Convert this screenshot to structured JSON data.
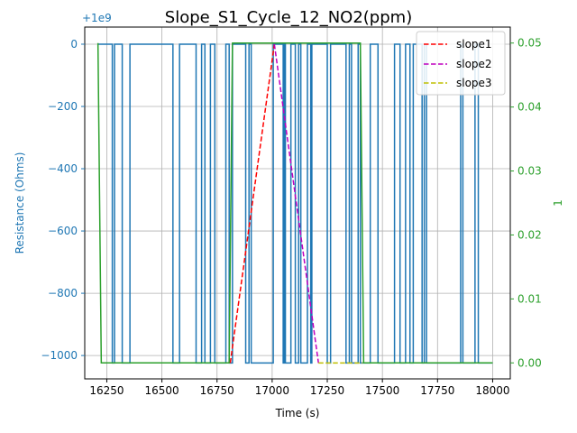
{
  "chart_data": {
    "type": "line",
    "title": "Slope_S1_Cycle_12_NO2(ppm)",
    "xlabel": "Time (s)",
    "ylabel_left": "Resistance (Ohms)",
    "ylabel_right": "1",
    "left_offset_text": "+1e9",
    "xlim": [
      16150,
      18080
    ],
    "ylim_left": [
      -1075,
      55
    ],
    "ylim_right": [
      -0.0025,
      0.0525
    ],
    "x_ticks": [
      16250,
      16500,
      16750,
      17000,
      17250,
      17500,
      17750,
      18000
    ],
    "y_left_ticks": [
      0,
      -200,
      -400,
      -600,
      -800,
      -1000
    ],
    "y_right_ticks": [
      0.0,
      0.01,
      0.02,
      0.03,
      0.04,
      0.05
    ],
    "y_right_tick_labels": [
      "0.00",
      "0.01",
      "0.02",
      "0.03",
      "0.04",
      "0.05"
    ],
    "grid": true,
    "legend_position": "top-right",
    "colors": {
      "resistance": "#1f77b4",
      "concentration": "#2ca02c",
      "slope1": "#ff0000",
      "slope2": "#bf00bf",
      "slope3": "#bfbf00"
    },
    "series": [
      {
        "axis": "left",
        "color": "#1f77b4",
        "style": "step",
        "points": [
          [
            16210,
            0
          ],
          [
            16275,
            0
          ],
          [
            16275,
            -1024
          ],
          [
            16285,
            -1024
          ],
          [
            16285,
            0
          ],
          [
            16320,
            0
          ],
          [
            16320,
            -1024
          ],
          [
            16355,
            -1024
          ],
          [
            16355,
            0
          ],
          [
            16550,
            0
          ],
          [
            16550,
            -1024
          ],
          [
            16580,
            -1024
          ],
          [
            16580,
            0
          ],
          [
            16655,
            0
          ],
          [
            16655,
            -1024
          ],
          [
            16680,
            -1024
          ],
          [
            16680,
            0
          ],
          [
            16695,
            0
          ],
          [
            16695,
            -1024
          ],
          [
            16720,
            -1024
          ],
          [
            16720,
            0
          ],
          [
            16740,
            0
          ],
          [
            16740,
            -1024
          ],
          [
            16790,
            -1024
          ],
          [
            16790,
            0
          ],
          [
            16805,
            0
          ],
          [
            16805,
            -1024
          ],
          [
            16820,
            -1024
          ],
          [
            16820,
            0
          ],
          [
            16880,
            0
          ],
          [
            16880,
            -1024
          ],
          [
            16895,
            -1024
          ],
          [
            16895,
            0
          ],
          [
            16905,
            0
          ],
          [
            16905,
            -1024
          ],
          [
            17005,
            -1024
          ],
          [
            17005,
            0
          ],
          [
            17050,
            0
          ],
          [
            17050,
            -1024
          ],
          [
            17055,
            -1024
          ],
          [
            17055,
            0
          ],
          [
            17060,
            0
          ],
          [
            17060,
            -1024
          ],
          [
            17085,
            -1024
          ],
          [
            17085,
            0
          ],
          [
            17105,
            0
          ],
          [
            17105,
            -1024
          ],
          [
            17120,
            -1024
          ],
          [
            17120,
            0
          ],
          [
            17130,
            0
          ],
          [
            17130,
            -1024
          ],
          [
            17160,
            -1024
          ],
          [
            17160,
            0
          ],
          [
            17175,
            0
          ],
          [
            17175,
            -1024
          ],
          [
            17180,
            -1024
          ],
          [
            17180,
            0
          ],
          [
            17250,
            0
          ],
          [
            17250,
            -1024
          ],
          [
            17265,
            -1024
          ],
          [
            17265,
            0
          ],
          [
            17335,
            0
          ],
          [
            17335,
            -1024
          ],
          [
            17350,
            -1024
          ],
          [
            17350,
            0
          ],
          [
            17360,
            0
          ],
          [
            17360,
            -1024
          ],
          [
            17390,
            -1024
          ],
          [
            17390,
            0
          ],
          [
            17400,
            0
          ],
          [
            17400,
            -1024
          ],
          [
            17445,
            -1024
          ],
          [
            17445,
            0
          ],
          [
            17480,
            0
          ],
          [
            17480,
            -1024
          ],
          [
            17555,
            -1024
          ],
          [
            17555,
            0
          ],
          [
            17580,
            0
          ],
          [
            17580,
            -1024
          ],
          [
            17605,
            -1024
          ],
          [
            17605,
            0
          ],
          [
            17625,
            0
          ],
          [
            17625,
            -1024
          ],
          [
            17640,
            -1024
          ],
          [
            17640,
            0
          ],
          [
            17680,
            0
          ],
          [
            17680,
            -1024
          ],
          [
            17690,
            -1024
          ],
          [
            17690,
            0
          ],
          [
            17700,
            0
          ],
          [
            17700,
            -1024
          ],
          [
            17855,
            -1024
          ],
          [
            17855,
            0
          ],
          [
            17865,
            0
          ],
          [
            17865,
            -1024
          ],
          [
            17920,
            -1024
          ],
          [
            17920,
            0
          ],
          [
            17935,
            0
          ],
          [
            17935,
            -1024
          ],
          [
            18000,
            -1024
          ]
        ]
      },
      {
        "axis": "right",
        "color": "#2ca02c",
        "style": "line",
        "points": [
          [
            16210,
            0.05
          ],
          [
            16225,
            0.0
          ],
          [
            16805,
            0.0
          ],
          [
            16820,
            0.05
          ],
          [
            17400,
            0.05
          ],
          [
            17415,
            0.0
          ],
          [
            18000,
            0.0
          ]
        ]
      },
      {
        "name": "slope1",
        "axis": "left",
        "color": "#ff0000",
        "style": "dashed",
        "points": [
          [
            16810,
            -1024
          ],
          [
            17010,
            0
          ]
        ]
      },
      {
        "name": "slope2",
        "axis": "left",
        "color": "#bf00bf",
        "style": "dashed",
        "points": [
          [
            17010,
            0
          ],
          [
            17210,
            -1024
          ]
        ]
      },
      {
        "name": "slope3",
        "axis": "left",
        "color": "#bfbf00",
        "style": "dashed",
        "points": [
          [
            17210,
            -1024
          ],
          [
            17410,
            -1024
          ]
        ]
      }
    ]
  }
}
